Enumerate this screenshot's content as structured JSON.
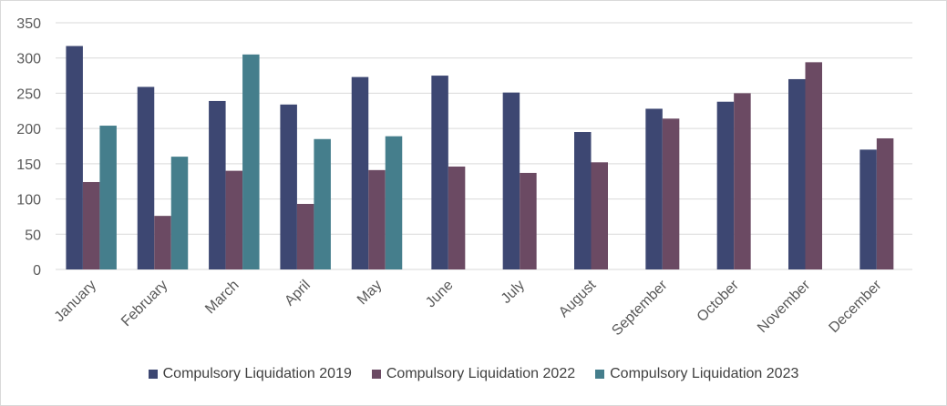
{
  "chart_data": {
    "type": "bar",
    "categories": [
      "January",
      "February",
      "March",
      "April",
      "May",
      "June",
      "July",
      "August",
      "September",
      "October",
      "November",
      "December"
    ],
    "series": [
      {
        "name": "Compulsory Liquidation 2019",
        "color": "#3d4772",
        "values": [
          317,
          259,
          239,
          234,
          273,
          275,
          251,
          195,
          228,
          238,
          270,
          170
        ]
      },
      {
        "name": "Compulsory Liquidation 2022",
        "color": "#6b4a63",
        "values": [
          124,
          76,
          140,
          93,
          141,
          146,
          137,
          152,
          214,
          250,
          294,
          186
        ]
      },
      {
        "name": "Compulsory Liquidation 2023",
        "color": "#457e8c",
        "values": [
          204,
          160,
          305,
          185,
          189,
          null,
          null,
          null,
          null,
          null,
          null,
          null
        ]
      }
    ],
    "ylim": [
      0,
      350
    ],
    "yticks": [
      0,
      50,
      100,
      150,
      200,
      250,
      300,
      350
    ],
    "grid": true,
    "legend": "bottom"
  }
}
